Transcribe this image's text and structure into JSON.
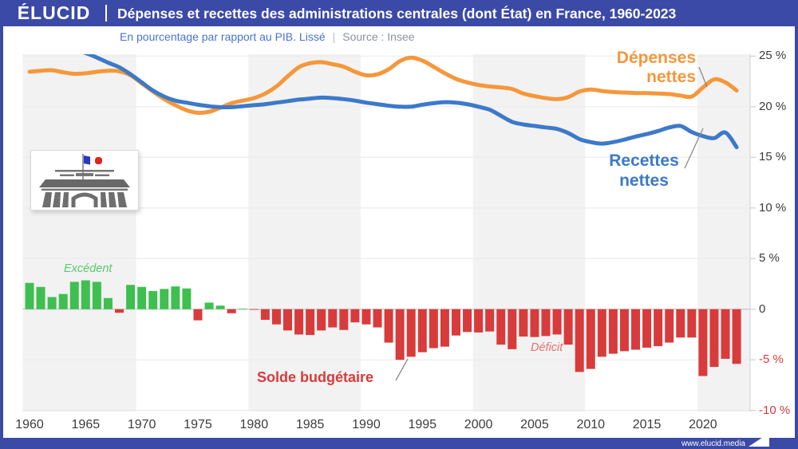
{
  "header": {
    "logo": "ÉLUCID",
    "title": "Dépenses et recettes des administrations centrales (dont État) en France, 1960-2023"
  },
  "subtitle": {
    "description": "En pourcentage par rapport au PIB. Lissé",
    "separator": "|",
    "source": "Source : Insee"
  },
  "annotations": {
    "expenses_line1": "Dépenses",
    "expenses_line2": "nettes",
    "revenue_line1": "Recettes",
    "revenue_line2": "nettes",
    "surplus": "Excédent",
    "deficit": "Déficit",
    "balance": "Solde budgétaire"
  },
  "footer": {
    "url": "www.elucid.media"
  },
  "colors": {
    "brand_blue": "#3B4AA6",
    "expenses_orange": "#F5973B",
    "revenue_blue": "#3D79C9",
    "surplus_green": "#3FBF50",
    "deficit_red": "#D83B3B",
    "subtitle_blue": "#4A72D2",
    "source_gray": "#8C929C",
    "band_gray": "#F2F2F2",
    "grid_gray": "#ECECEC",
    "zero_line_gray": "#C4C4C4",
    "axis_line_gray": "#DCDCDC",
    "connector_gray": "#8A8A8A",
    "axis_text": "#3C3C3C"
  },
  "chart_data": {
    "type": "line+bar",
    "title": "Dépenses et recettes des administrations centrales (dont État) en France, 1960-2023",
    "unit": "% du PIB",
    "grid": "horizontal",
    "legend_position": "inline-annotations",
    "ylim": [
      -10.5,
      25.2
    ],
    "x": [
      1960,
      1961,
      1962,
      1963,
      1964,
      1965,
      1966,
      1967,
      1968,
      1969,
      1970,
      1971,
      1972,
      1973,
      1974,
      1975,
      1976,
      1977,
      1978,
      1979,
      1980,
      1981,
      1982,
      1983,
      1984,
      1985,
      1986,
      1987,
      1988,
      1989,
      1990,
      1991,
      1992,
      1993,
      1994,
      1995,
      1996,
      1997,
      1998,
      1999,
      2000,
      2001,
      2002,
      2003,
      2004,
      2005,
      2006,
      2007,
      2008,
      2009,
      2010,
      2011,
      2012,
      2013,
      2014,
      2015,
      2016,
      2017,
      2018,
      2019,
      2020,
      2021,
      2022,
      2023
    ],
    "series": [
      {
        "key": "expenses",
        "name": "Dépenses nettes",
        "type": "line",
        "color": "#F5973B",
        "values": [
          23.45,
          23.55,
          23.6,
          23.4,
          23.25,
          23.3,
          23.45,
          23.55,
          23.5,
          23.1,
          22.3,
          21.5,
          20.75,
          20.15,
          19.65,
          19.4,
          19.5,
          19.9,
          20.35,
          20.6,
          20.85,
          21.3,
          22.0,
          23.0,
          23.9,
          24.3,
          24.4,
          24.2,
          23.95,
          23.45,
          23.1,
          23.2,
          23.7,
          24.5,
          24.85,
          24.55,
          23.95,
          23.3,
          22.75,
          22.4,
          22.15,
          22.0,
          21.9,
          21.75,
          21.3,
          21.05,
          20.85,
          20.75,
          20.95,
          21.5,
          21.7,
          21.55,
          21.45,
          21.4,
          21.35,
          21.35,
          21.3,
          21.25,
          21.1,
          21.0,
          21.9,
          22.7,
          22.4,
          21.6
        ]
      },
      {
        "key": "revenue",
        "name": "Recettes nettes",
        "type": "line",
        "color": "#3D79C9",
        "values": [
          25.9,
          25.85,
          25.8,
          25.7,
          25.55,
          25.3,
          24.85,
          24.35,
          23.9,
          23.2,
          22.4,
          21.6,
          21.0,
          20.6,
          20.4,
          20.2,
          20.05,
          19.95,
          19.95,
          20.05,
          20.15,
          20.25,
          20.4,
          20.55,
          20.7,
          20.8,
          20.9,
          20.85,
          20.75,
          20.6,
          20.4,
          20.25,
          20.1,
          20.0,
          20.0,
          20.2,
          20.35,
          20.45,
          20.4,
          20.25,
          20.0,
          19.7,
          19.1,
          18.5,
          18.25,
          18.1,
          17.95,
          17.8,
          17.4,
          16.8,
          16.5,
          16.35,
          16.5,
          16.75,
          17.05,
          17.3,
          17.6,
          17.95,
          18.1,
          17.5,
          17.1,
          16.9,
          17.45,
          16.0
        ]
      },
      {
        "key": "balance",
        "name": "Solde budgétaire",
        "type": "bar",
        "color_positive": "#3FBF50",
        "color_negative": "#D83B3B",
        "values": [
          2.6,
          2.2,
          1.2,
          1.5,
          2.7,
          2.85,
          2.7,
          1.1,
          -0.35,
          2.4,
          2.2,
          1.8,
          2.0,
          2.25,
          2.05,
          -1.1,
          0.65,
          0.35,
          -0.4,
          0.05,
          -0.05,
          -1.05,
          -1.5,
          -2.1,
          -2.5,
          -2.55,
          -2.1,
          -1.8,
          -2.05,
          -1.3,
          -1.5,
          -1.8,
          -3.3,
          -5.0,
          -4.7,
          -4.25,
          -3.85,
          -3.7,
          -2.6,
          -2.25,
          -2.3,
          -2.2,
          -3.5,
          -3.95,
          -2.7,
          -2.75,
          -2.65,
          -2.5,
          -3.5,
          -6.2,
          -5.9,
          -4.7,
          -4.4,
          -4.15,
          -4.0,
          -3.8,
          -3.65,
          -3.3,
          -2.8,
          -2.8,
          -6.6,
          -5.7,
          -4.9,
          -5.4
        ]
      }
    ],
    "y_ticks": [
      {
        "value": 25,
        "label": "25 %"
      },
      {
        "value": 20,
        "label": "20 %"
      },
      {
        "value": 15,
        "label": "15 %"
      },
      {
        "value": 10,
        "label": "10 %"
      },
      {
        "value": 5,
        "label": "5 %"
      },
      {
        "value": 0,
        "label": "0"
      },
      {
        "value": -5,
        "label": "-5 %"
      },
      {
        "value": -10,
        "label": "-10 %"
      }
    ],
    "x_ticks": [
      {
        "value": 1960,
        "label": "1960"
      },
      {
        "value": 1965,
        "label": "1965"
      },
      {
        "value": 1970,
        "label": "1970"
      },
      {
        "value": 1975,
        "label": "1975"
      },
      {
        "value": 1980,
        "label": "1980"
      },
      {
        "value": 1985,
        "label": "1985"
      },
      {
        "value": 1990,
        "label": "1990"
      },
      {
        "value": 1995,
        "label": "1995"
      },
      {
        "value": 2000,
        "label": "2000"
      },
      {
        "value": 2005,
        "label": "2005"
      },
      {
        "value": 2010,
        "label": "2010"
      },
      {
        "value": 2015,
        "label": "2015"
      },
      {
        "value": 2020,
        "label": "2020"
      }
    ],
    "background_decade_bands": [
      [
        1959.4,
        1969.5
      ],
      [
        1979.5,
        1989.5
      ],
      [
        1999.5,
        2009.5
      ],
      [
        2019.5,
        2024.5
      ]
    ]
  }
}
